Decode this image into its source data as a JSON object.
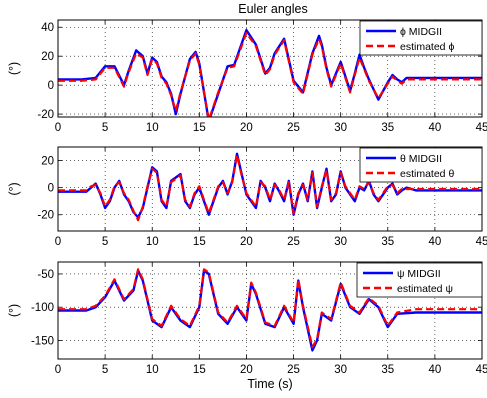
{
  "figure": {
    "title": "Euler angles",
    "xlabel": "Time (s)"
  },
  "chart_data": [
    {
      "type": "line",
      "ylabel": "(°)",
      "xlim": [
        0,
        45
      ],
      "ylim": [
        -22,
        45
      ],
      "xticks": [
        0,
        5,
        10,
        15,
        20,
        25,
        30,
        35,
        40,
        45
      ],
      "yticks": [
        -20,
        0,
        20,
        40
      ],
      "grid": true,
      "legend_position": "top-right",
      "series": [
        {
          "name": "ϕ MIDGII",
          "style": "solid",
          "color": "#0000ff",
          "x": [
            0,
            2.5,
            4,
            5,
            6,
            7,
            7.5,
            8.3,
            9,
            9.5,
            10,
            10.5,
            11,
            11.5,
            12,
            12.5,
            13,
            14,
            14.6,
            15,
            16,
            17,
            18,
            18.7,
            20,
            21,
            22,
            22.5,
            23,
            24,
            25,
            26,
            27,
            27.7,
            28,
            28.5,
            29,
            30,
            31,
            31.5,
            32,
            32.5,
            33,
            34,
            35,
            35.5,
            36,
            36.5,
            37,
            38,
            40,
            42,
            44,
            45
          ],
          "y": [
            4,
            4,
            5,
            13,
            13,
            0,
            10,
            24,
            20,
            8,
            19,
            16,
            6,
            2,
            -6,
            -20,
            -6,
            18,
            23,
            15,
            -25,
            -6,
            13,
            14,
            38,
            28,
            8,
            12,
            22,
            32,
            3,
            -5,
            22,
            34,
            28,
            12,
            0,
            16,
            -4,
            8,
            21,
            12,
            4,
            -10,
            2,
            7,
            4,
            2,
            5,
            5,
            5,
            5,
            5,
            5
          ]
        },
        {
          "name": "estimated ϕ",
          "style": "dashed",
          "color": "#ff0000",
          "x": [
            0,
            2.5,
            4,
            5,
            6,
            7,
            7.5,
            8.3,
            9,
            9.5,
            10,
            10.5,
            11,
            11.5,
            12,
            12.5,
            13,
            14,
            14.6,
            15,
            16,
            17,
            18,
            18.7,
            20,
            21,
            22,
            22.5,
            23,
            24,
            25,
            26,
            27,
            27.7,
            28,
            28.5,
            29,
            30,
            31,
            31.5,
            32,
            32.5,
            33,
            34,
            35,
            35.5,
            36,
            36.5,
            37,
            38,
            40,
            42,
            44,
            45
          ],
          "y": [
            3,
            3,
            4,
            12,
            12,
            -1,
            9,
            22,
            19,
            7,
            18,
            15,
            5,
            1,
            -7,
            -18,
            -5,
            17,
            22,
            14,
            -24,
            -5,
            12,
            13,
            36,
            27,
            7,
            11,
            21,
            31,
            2,
            -6,
            21,
            32,
            27,
            11,
            -1,
            15,
            -5,
            7,
            19,
            11,
            3,
            -9,
            1,
            6,
            3,
            1,
            4,
            4,
            4,
            4,
            4,
            4
          ]
        }
      ]
    },
    {
      "type": "line",
      "ylabel": "(°)",
      "xlim": [
        0,
        45
      ],
      "ylim": [
        -32,
        30
      ],
      "xticks": [
        0,
        5,
        10,
        15,
        20,
        25,
        30,
        35,
        40,
        45
      ],
      "yticks": [
        -20,
        0,
        20
      ],
      "grid": true,
      "legend_position": "top-right",
      "series": [
        {
          "name": "θ MIDGII",
          "style": "solid",
          "color": "#0000ff",
          "x": [
            0,
            3,
            3.5,
            4,
            4.5,
            5,
            5.5,
            6,
            6.5,
            7,
            7.5,
            8,
            8.5,
            9,
            9.5,
            10,
            10.5,
            11,
            11.5,
            12,
            13,
            13.5,
            14,
            14.5,
            15,
            15.5,
            16,
            17,
            17.5,
            18,
            18.5,
            19,
            19.5,
            20,
            21,
            21.5,
            22,
            22.5,
            23,
            23.5,
            24,
            24.5,
            25,
            25.5,
            26,
            26.5,
            27,
            27.5,
            28,
            28.5,
            29,
            29.5,
            30,
            30.5,
            31,
            31.5,
            32,
            32.5,
            33,
            33.5,
            34,
            34.5,
            35,
            35.5,
            36,
            36.5,
            37,
            38,
            40,
            42,
            45
          ],
          "y": [
            -3,
            -3,
            0,
            3,
            -5,
            -15,
            -10,
            0,
            5,
            -5,
            -10,
            -18,
            -22,
            -15,
            0,
            15,
            12,
            -10,
            -15,
            5,
            10,
            -10,
            -15,
            -5,
            0,
            -10,
            -20,
            0,
            5,
            -5,
            5,
            25,
            10,
            -5,
            -15,
            5,
            0,
            -10,
            3,
            -3,
            -10,
            5,
            -20,
            -5,
            3,
            -10,
            12,
            -15,
            0,
            14,
            -10,
            -5,
            12,
            0,
            -5,
            -10,
            0,
            -2,
            5,
            -5,
            -10,
            -5,
            0,
            3,
            -5,
            -2,
            0,
            -2,
            -2,
            -2,
            -2
          ]
        },
        {
          "name": "estimated θ",
          "style": "dashed",
          "color": "#ff0000",
          "x": [
            0,
            3,
            3.5,
            4,
            4.5,
            5,
            5.5,
            6,
            6.5,
            7,
            7.5,
            8,
            8.5,
            9,
            9.5,
            10,
            10.5,
            11,
            11.5,
            12,
            13,
            13.5,
            14,
            14.5,
            15,
            15.5,
            16,
            17,
            17.5,
            18,
            18.5,
            19,
            19.5,
            20,
            21,
            21.5,
            22,
            22.5,
            23,
            23.5,
            24,
            24.5,
            25,
            25.5,
            26,
            26.5,
            27,
            27.5,
            28,
            28.5,
            29,
            29.5,
            30,
            30.5,
            31,
            31.5,
            32,
            32.5,
            33,
            33.5,
            34,
            34.5,
            35,
            35.5,
            36,
            36.5,
            37,
            38,
            40,
            42,
            45
          ],
          "y": [
            -2,
            -2,
            1,
            2,
            -4,
            -14,
            -9,
            1,
            4,
            -4,
            -9,
            -17,
            -24,
            -14,
            1,
            14,
            11,
            -9,
            -14,
            4,
            9,
            -9,
            -14,
            -4,
            1,
            -9,
            -19,
            1,
            4,
            -4,
            4,
            24,
            9,
            -4,
            -14,
            4,
            1,
            -9,
            2,
            -2,
            -9,
            4,
            -19,
            -4,
            2,
            -9,
            11,
            -14,
            1,
            13,
            -9,
            -4,
            11,
            1,
            -4,
            -9,
            1,
            -1,
            4,
            -4,
            -9,
            -4,
            1,
            2,
            -4,
            -1,
            -1,
            -1,
            -1,
            -1,
            -1
          ]
        }
      ]
    },
    {
      "type": "line",
      "ylabel": "(°)",
      "xlim": [
        0,
        45
      ],
      "ylim": [
        -178,
        -32
      ],
      "xticks": [
        0,
        5,
        10,
        15,
        20,
        25,
        30,
        35,
        40,
        45
      ],
      "yticks": [
        -150,
        -100,
        -50
      ],
      "grid": true,
      "legend_position": "top-right",
      "series": [
        {
          "name": "ψ MIDGII",
          "style": "solid",
          "color": "#0000ff",
          "x": [
            0,
            3,
            4,
            5,
            6,
            7,
            8,
            8.5,
            9,
            10,
            11,
            12,
            13,
            14,
            15,
            15.5,
            16,
            17,
            18,
            19,
            20,
            20.5,
            21,
            22,
            23,
            24,
            25,
            25.5,
            26,
            27,
            27.5,
            28,
            29,
            30,
            31,
            32,
            33,
            34,
            35,
            36,
            38,
            40,
            42,
            45
          ],
          "y": [
            -105,
            -105,
            -100,
            -85,
            -60,
            -90,
            -75,
            -45,
            -60,
            -120,
            -130,
            -100,
            -120,
            -130,
            -100,
            -45,
            -50,
            -110,
            -125,
            -100,
            -120,
            -65,
            -80,
            -125,
            -130,
            -100,
            -125,
            -60,
            -100,
            -165,
            -150,
            -110,
            -120,
            -65,
            -100,
            -110,
            -88,
            -100,
            -130,
            -110,
            -108,
            -108,
            -108,
            -108
          ]
        },
        {
          "name": "estimated ψ",
          "style": "dashed",
          "color": "#ff0000",
          "x": [
            0,
            3,
            4,
            5,
            6,
            7,
            8,
            8.5,
            9,
            10,
            11,
            12,
            13,
            14,
            15,
            15.5,
            16,
            17,
            18,
            19,
            20,
            20.5,
            21,
            22,
            23,
            24,
            25,
            25.5,
            26,
            27,
            27.5,
            28,
            29,
            30,
            31,
            32,
            33,
            34,
            35,
            36,
            38,
            40,
            42,
            45
          ],
          "y": [
            -103,
            -103,
            -98,
            -83,
            -58,
            -88,
            -73,
            -43,
            -58,
            -118,
            -128,
            -98,
            -118,
            -128,
            -98,
            -43,
            -48,
            -108,
            -123,
            -98,
            -118,
            -63,
            -78,
            -123,
            -128,
            -98,
            -123,
            -58,
            -98,
            -160,
            -148,
            -108,
            -118,
            -63,
            -98,
            -108,
            -86,
            -98,
            -128,
            -108,
            -103,
            -103,
            -103,
            -103
          ]
        }
      ]
    }
  ]
}
